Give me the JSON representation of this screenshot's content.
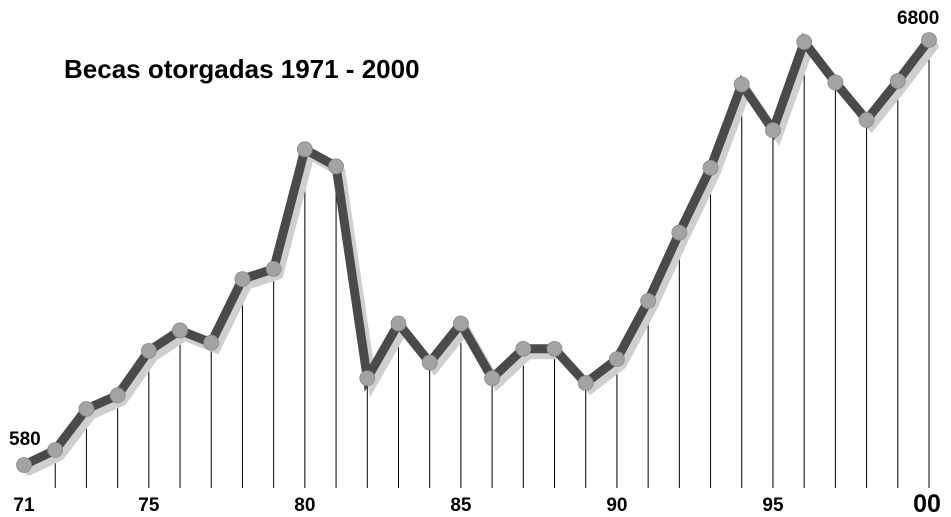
{
  "chart_data": {
    "type": "line",
    "title": "Becas otorgadas  1971  -  2000",
    "xlabel": "",
    "ylabel": "",
    "x": [
      1971,
      1972,
      1973,
      1974,
      1975,
      1976,
      1977,
      1978,
      1979,
      1980,
      1981,
      1982,
      1983,
      1984,
      1985,
      1986,
      1987,
      1988,
      1989,
      1990,
      1991,
      1992,
      1993,
      1994,
      1995,
      1996,
      1997,
      1998,
      1999,
      2000
    ],
    "y": [
      580,
      800,
      1400,
      1600,
      2250,
      2550,
      2370,
      3300,
      3450,
      5200,
      4950,
      1850,
      2650,
      2080,
      2650,
      1850,
      2280,
      2280,
      1780,
      2130,
      2980,
      3980,
      4930,
      6150,
      5480,
      6770,
      6180,
      5630,
      6200,
      6800
    ],
    "ylim": [
      580,
      6800
    ],
    "x_tick_labels": [
      {
        "x": 1971,
        "label": "71"
      },
      {
        "x": 1975,
        "label": "75"
      },
      {
        "x": 1980,
        "label": "80"
      },
      {
        "x": 1985,
        "label": "85"
      },
      {
        "x": 1990,
        "label": "90"
      },
      {
        "x": 1995,
        "label": "95"
      },
      {
        "x": 2000,
        "label": "00"
      }
    ],
    "data_labels": [
      {
        "x": 1971,
        "label": "580"
      },
      {
        "x": 2000,
        "label": "6800"
      }
    ],
    "grid": "vertical drop lines at each point",
    "colors": {
      "line": "#4a4a4a",
      "marker": "#a3a3a3",
      "shadow": "#cfcfcf",
      "droplines": "#000000"
    }
  }
}
